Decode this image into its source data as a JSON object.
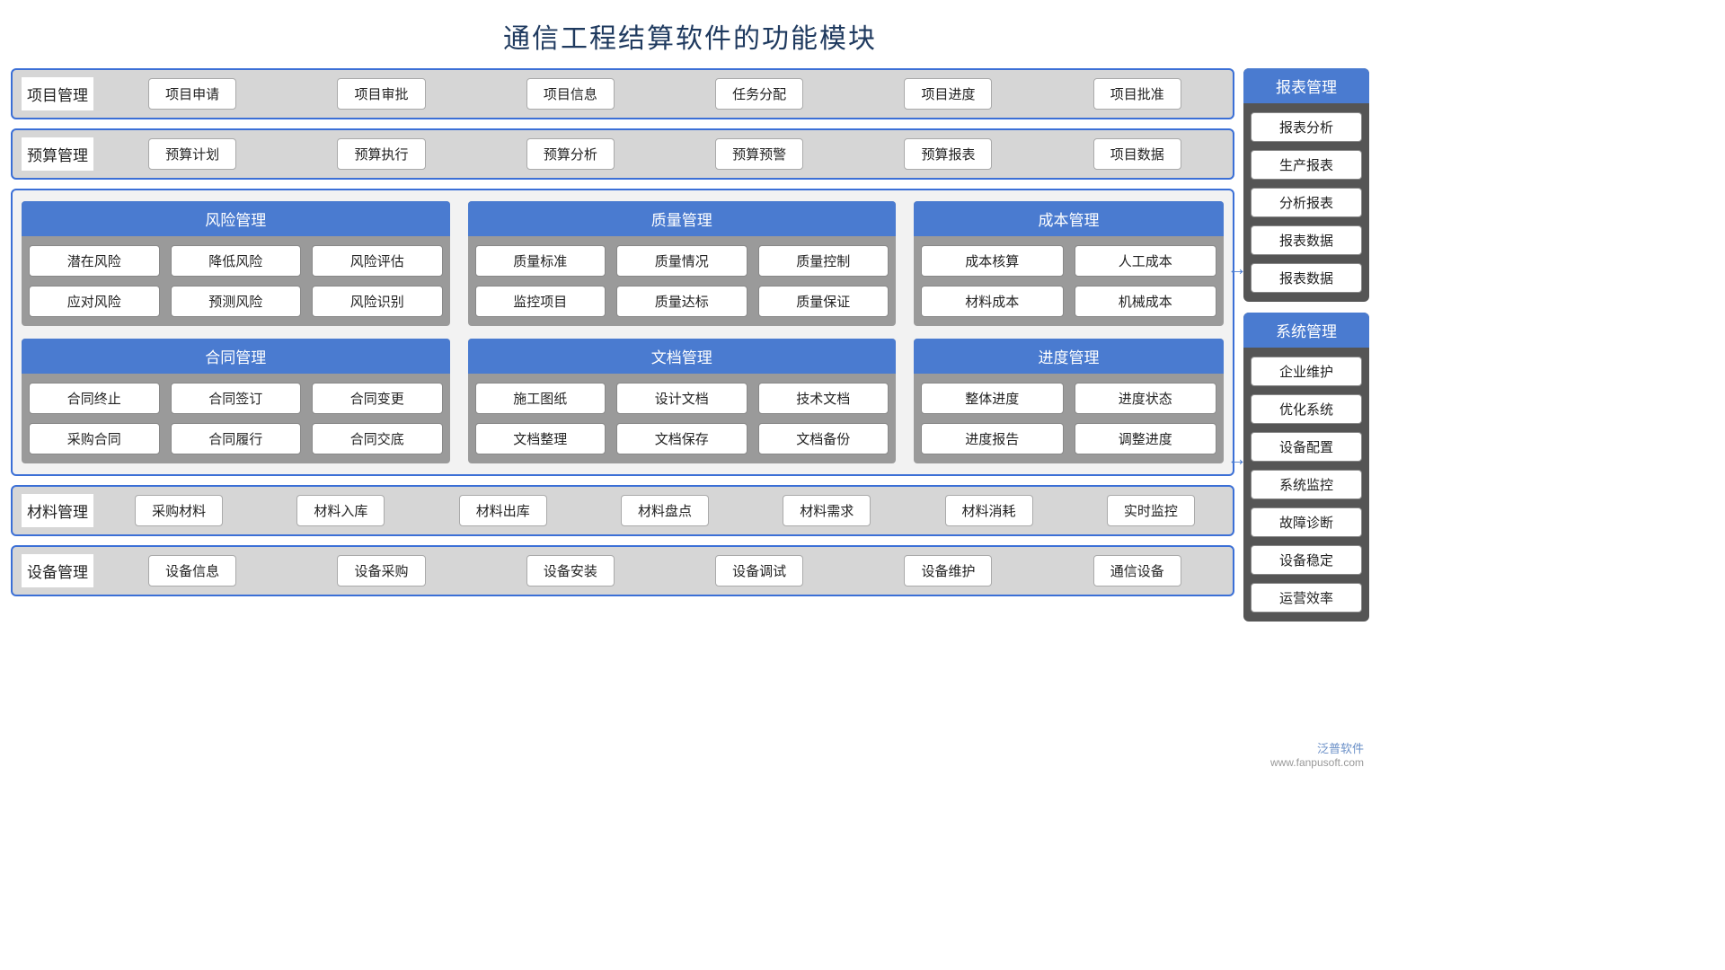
{
  "title": "通信工程结算软件的功能模块",
  "colors": {
    "border": "#3b6fd6",
    "blue_header": "#4a7bd0",
    "grey_bg": "#d6d6d6",
    "dark_grey": "#9a9a9a",
    "side_bg": "#555555",
    "title_color": "#1f3a5f"
  },
  "h_panels": [
    {
      "label": "项目管理",
      "items": [
        "项目申请",
        "项目审批",
        "项目信息",
        "任务分配",
        "项目进度",
        "项目批准"
      ]
    },
    {
      "label": "预算管理",
      "items": [
        "预算计划",
        "预算执行",
        "预算分析",
        "预算预警",
        "预算报表",
        "项目数据"
      ]
    }
  ],
  "mid_rows": [
    [
      {
        "title": "风险管理",
        "cols": 3,
        "w": "w1",
        "items": [
          "潜在风险",
          "降低风险",
          "风险评估",
          "应对风险",
          "预测风险",
          "风险识别"
        ]
      },
      {
        "title": "质量管理",
        "cols": 3,
        "w": "w2",
        "items": [
          "质量标准",
          "质量情况",
          "质量控制",
          "监控项目",
          "质量达标",
          "质量保证"
        ]
      },
      {
        "title": "成本管理",
        "cols": 2,
        "w": "w3",
        "items": [
          "成本核算",
          "人工成本",
          "材料成本",
          "机械成本"
        ]
      }
    ],
    [
      {
        "title": "合同管理",
        "cols": 3,
        "w": "w1",
        "items": [
          "合同终止",
          "合同签订",
          "合同变更",
          "采购合同",
          "合同履行",
          "合同交底"
        ]
      },
      {
        "title": "文档管理",
        "cols": 3,
        "w": "w2",
        "items": [
          "施工图纸",
          "设计文档",
          "技术文档",
          "文档整理",
          "文档保存",
          "文档备份"
        ]
      },
      {
        "title": "进度管理",
        "cols": 2,
        "w": "w3",
        "items": [
          "整体进度",
          "进度状态",
          "进度报告",
          "调整进度"
        ]
      }
    ]
  ],
  "bottom_panels": [
    {
      "label": "材料管理",
      "items": [
        "采购材料",
        "材料入库",
        "材料出库",
        "材料盘点",
        "材料需求",
        "材料消耗",
        "实时监控"
      ]
    },
    {
      "label": "设备管理",
      "items": [
        "设备信息",
        "设备采购",
        "设备安装",
        "设备调试",
        "设备维护",
        "通信设备"
      ]
    }
  ],
  "side_panels": [
    {
      "title": "报表管理",
      "items": [
        "报表分析",
        "生产报表",
        "分析报表",
        "报表数据",
        "报表数据"
      ]
    },
    {
      "title": "系统管理",
      "items": [
        "企业维护",
        "优化系统",
        "设备配置",
        "系统监控",
        "故障诊断",
        "设备稳定",
        "运营效率"
      ]
    }
  ],
  "watermark": {
    "brand": "泛普软件",
    "url": "www.fanpusoft.com"
  }
}
